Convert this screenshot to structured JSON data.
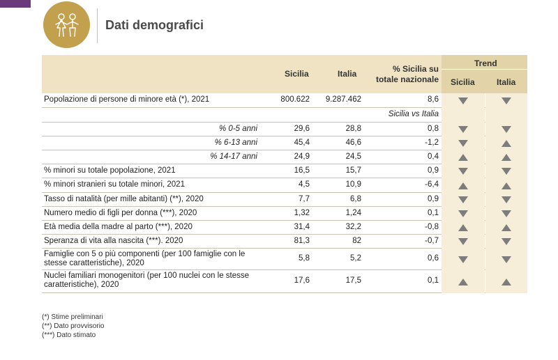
{
  "page": {
    "title": "Dati demografici"
  },
  "header": {
    "sicilia": "Sicilia",
    "italia": "Italia",
    "pct_line1": "% Sicilia su",
    "pct_line2": "totale nazionale",
    "trend": "Trend",
    "trend_sicilia": "Sicilia",
    "trend_italia": "Italia"
  },
  "rows": [
    {
      "label": "Popolazione di persone di minore età (*), 2021",
      "sicilia": "800.622",
      "italia": "9.287.462",
      "pct": "8,6",
      "trend_sicilia": "down",
      "trend_italia": "down"
    },
    {
      "label": "",
      "subheader": "Sicilia vs Italia"
    },
    {
      "label": "% 0-5 anni",
      "italic": true,
      "sicilia": "29,6",
      "italia": "28,8",
      "pct": "0,8",
      "trend_sicilia": "down",
      "trend_italia": "down"
    },
    {
      "label": "% 6-13 anni",
      "italic": true,
      "sicilia": "45,4",
      "italia": "46,6",
      "pct": "-1,2",
      "trend_sicilia": "down",
      "trend_italia": "up"
    },
    {
      "label": "% 14-17 anni",
      "italic": true,
      "sicilia": "24,9",
      "italia": "24,5",
      "pct": "0,4",
      "trend_sicilia": "up",
      "trend_italia": "up"
    },
    {
      "label": "% minori su totale popolazione, 2021",
      "sicilia": "16,5",
      "italia": "15,7",
      "pct": "0,9",
      "trend_sicilia": "down",
      "trend_italia": "down"
    },
    {
      "label": "% minori stranieri su totale minori, 2021",
      "sicilia": "4,5",
      "italia": "10,9",
      "pct": "-6,4",
      "trend_sicilia": "up",
      "trend_italia": "up"
    },
    {
      "label": "Tasso di natalità (per mille abitanti) (**), 2020",
      "sicilia": "7,7",
      "italia": "6,8",
      "pct": "0,9",
      "trend_sicilia": "down",
      "trend_italia": "down"
    },
    {
      "label": "Numero medio di figli per donna  (***), 2020",
      "sicilia": "1,32",
      "italia": "1,24",
      "pct": "0,1",
      "trend_sicilia": "down",
      "trend_italia": "down"
    },
    {
      "label": "Età media della madre al parto  (***), 2020",
      "sicilia": "31,4",
      "italia": "32,2",
      "pct": "-0,8",
      "trend_sicilia": "up",
      "trend_italia": "up"
    },
    {
      "label": "Speranza di vita alla nascita (***). 2020",
      "sicilia": "81,3",
      "italia": "82",
      "pct": "-0,7",
      "trend_sicilia": "down",
      "trend_italia": "down"
    },
    {
      "label": "Famiglie con 5 o più componenti (per 100 famiglie con le stesse caratteristiche), 2020",
      "sicilia": "5,8",
      "italia": "5,2",
      "pct": "0,6",
      "trend_sicilia": "down",
      "trend_italia": "down"
    },
    {
      "label": "Nuclei familiari monogenitori (per 100 nuclei con le stesse caratteristiche), 2020",
      "sicilia": "17,6",
      "italia": "17,5",
      "pct": "0,1",
      "trend_sicilia": "up",
      "trend_italia": "up"
    }
  ],
  "notes": [
    "(*) Stime preliminari",
    "(**) Dato provvisorio",
    "(***) Dato stimato"
  ],
  "colors": {
    "header_bg": "#efe3c3",
    "trend_bg": "#e2d3a8",
    "logo_gold": "#c3a04e",
    "corner_purple": "#6b3a7a",
    "arrow": "#7d7d7d"
  },
  "icons": {
    "logo": "children-icon",
    "up": "triangle-up-icon",
    "down": "triangle-down-icon"
  }
}
